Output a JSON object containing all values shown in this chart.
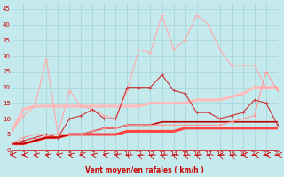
{
  "xlabel": "Vent moyen/en rafales ( km/h )",
  "xlim": [
    0,
    23
  ],
  "ylim": [
    0,
    47
  ],
  "yticks": [
    0,
    5,
    10,
    15,
    20,
    25,
    30,
    35,
    40,
    45
  ],
  "xticks": [
    0,
    1,
    2,
    3,
    4,
    5,
    6,
    7,
    8,
    9,
    10,
    11,
    12,
    13,
    14,
    15,
    16,
    17,
    18,
    19,
    20,
    21,
    22,
    23
  ],
  "background_color": "#c5eaed",
  "grid_color": "#a8d8dc",
  "lines": [
    {
      "y": [
        6,
        11,
        14,
        29,
        5,
        19,
        14,
        13,
        11,
        10,
        19,
        32,
        31,
        43,
        32,
        35,
        43,
        40,
        32,
        27,
        27,
        27,
        20,
        20
      ],
      "color": "#ffaaaa",
      "linewidth": 0.8,
      "marker": "+",
      "markersize": 3,
      "zorder": 3
    },
    {
      "y": [
        2,
        3,
        4,
        5,
        4,
        10,
        11,
        13,
        10,
        10,
        20,
        20,
        20,
        24,
        19,
        18,
        12,
        12,
        10,
        11,
        12,
        16,
        15,
        8
      ],
      "color": "#cc3333",
      "linewidth": 0.8,
      "marker": "+",
      "markersize": 3,
      "zorder": 4
    },
    {
      "y": [
        2,
        2,
        3,
        4,
        4,
        5,
        5,
        5,
        5,
        5,
        6,
        6,
        6,
        6,
        6,
        7,
        7,
        7,
        7,
        7,
        7,
        7,
        7,
        7
      ],
      "color": "#ff4444",
      "linewidth": 2.2,
      "marker": null,
      "markersize": 0,
      "zorder": 2
    },
    {
      "y": [
        2,
        2,
        3,
        4,
        4,
        5,
        5,
        6,
        7,
        7,
        8,
        8,
        8,
        9,
        9,
        9,
        9,
        9,
        9,
        9,
        9,
        9,
        9,
        9
      ],
      "color": "#bb0000",
      "linewidth": 1.2,
      "marker": null,
      "markersize": 0,
      "zorder": 2
    },
    {
      "y": [
        6,
        13,
        14,
        14,
        14,
        14,
        14,
        14,
        14,
        14,
        14,
        14,
        15,
        15,
        15,
        15,
        16,
        16,
        16,
        17,
        18,
        20,
        20,
        20
      ],
      "color": "#ffbbbb",
      "linewidth": 2.2,
      "marker": null,
      "markersize": 0,
      "zorder": 2
    },
    {
      "y": [
        2,
        4,
        5,
        5,
        5,
        5,
        5,
        6,
        7,
        7,
        8,
        8,
        8,
        8,
        8,
        8,
        8,
        8,
        8,
        9,
        10,
        11,
        25,
        19
      ],
      "color": "#ff9999",
      "linewidth": 0.8,
      "marker": "+",
      "markersize": 3,
      "zorder": 3
    }
  ],
  "wind_arrows_angles": [
    270,
    270,
    255,
    240,
    255,
    255,
    270,
    255,
    255,
    240,
    225,
    225,
    225,
    225,
    225,
    225,
    225,
    225,
    225,
    225,
    270,
    270,
    270,
    270
  ]
}
